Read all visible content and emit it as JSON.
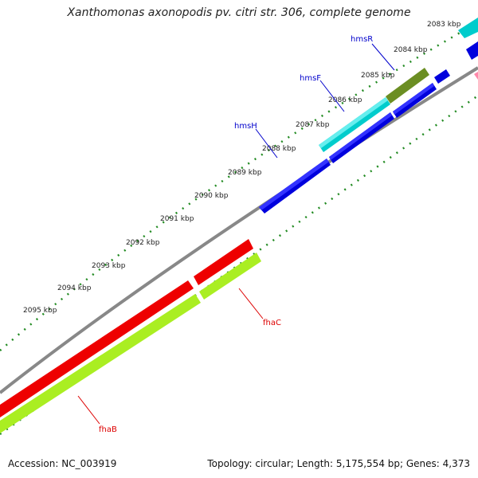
{
  "title": "Xanthomonas axonopodis pv. citri str. 306, complete genome",
  "footer": {
    "accession": "Accession: NC_003919",
    "summary": "Topology: circular; Length: 5,175,554 bp; Genes: 4,373"
  },
  "ticks": [
    "2083 kbp",
    "2084 kbp",
    "2085 kbp",
    "2086 kbp",
    "2087 kbp",
    "2088 kbp",
    "2089 kbp",
    "2090 kbp",
    "2091 kbp",
    "2092 kbp",
    "2093 kbp",
    "2094 kbp",
    "2095 kbp"
  ],
  "genes": [
    {
      "name": "hmsR",
      "color": "#0000cc"
    },
    {
      "name": "hmsF",
      "color": "#0000cc"
    },
    {
      "name": "hmsH",
      "color": "#0000cc"
    },
    {
      "name": "fhaC",
      "color": "#dd0000"
    },
    {
      "name": "fhaB",
      "color": "#dd0000"
    }
  ],
  "colors": {
    "backbone": "#888888",
    "dots": "#228b22",
    "blue": "#0000dd",
    "red": "#ee0000",
    "lime": "#aaee22",
    "cyan": "#00cccc",
    "olive": "#6b8e23",
    "pink": "#ff88aa"
  }
}
